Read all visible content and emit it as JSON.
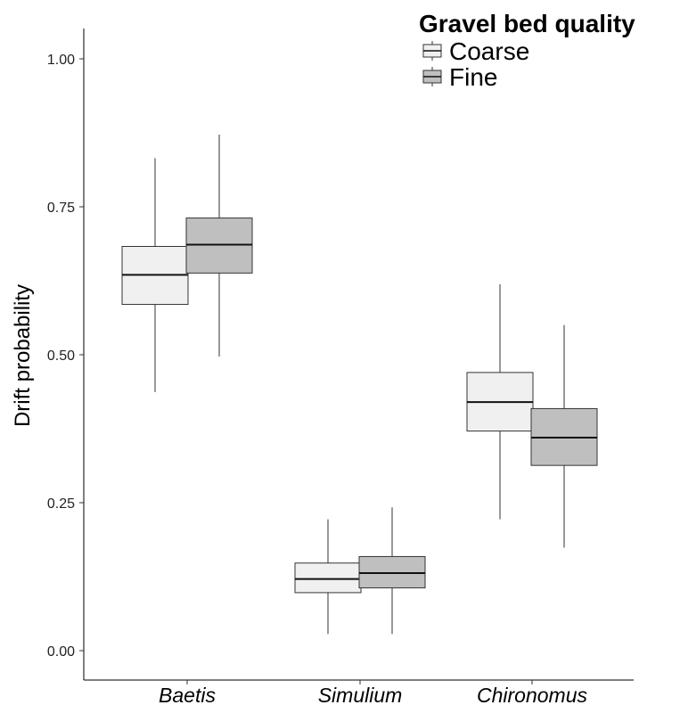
{
  "chart_data": {
    "type": "boxplot",
    "title": "",
    "xlabel": "",
    "ylabel": "Drift probability",
    "ylim": [
      -0.04,
      1.05
    ],
    "yticks": [
      0.0,
      0.25,
      0.5,
      0.75,
      1.0
    ],
    "ytick_labels": [
      "0.00",
      "0.25",
      "0.50",
      "0.75",
      "1.00"
    ],
    "categories": [
      "Baetis",
      "Simulium",
      "Chironomus"
    ],
    "grid": false,
    "legend": {
      "title": "Gravel bed quality",
      "position": "top-right"
    },
    "series": [
      {
        "name": "Coarse",
        "color": "#f0f0f0",
        "boxes": [
          {
            "whisker_low": 0.437,
            "q1": 0.585,
            "median": 0.635,
            "q3": 0.683,
            "whisker_high": 0.832
          },
          {
            "whisker_low": 0.028,
            "q1": 0.098,
            "median": 0.121,
            "q3": 0.148,
            "whisker_high": 0.222
          },
          {
            "whisker_low": 0.222,
            "q1": 0.371,
            "median": 0.42,
            "q3": 0.47,
            "whisker_high": 0.619
          }
        ]
      },
      {
        "name": "Fine",
        "color": "#bfbfbf",
        "boxes": [
          {
            "whisker_low": 0.497,
            "q1": 0.638,
            "median": 0.686,
            "q3": 0.731,
            "whisker_high": 0.872
          },
          {
            "whisker_low": 0.028,
            "q1": 0.106,
            "median": 0.131,
            "q3": 0.159,
            "whisker_high": 0.242
          },
          {
            "whisker_low": 0.174,
            "q1": 0.313,
            "median": 0.36,
            "q3": 0.409,
            "whisker_high": 0.55
          }
        ]
      }
    ]
  }
}
